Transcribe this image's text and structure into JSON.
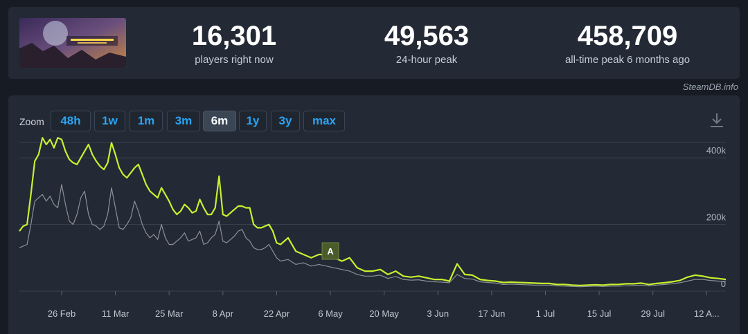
{
  "stats": [
    {
      "value": "16,301",
      "label": "players right now"
    },
    {
      "value": "49,563",
      "label": "24-hour peak"
    },
    {
      "value": "458,709",
      "label": "all-time peak 6 months ago"
    }
  ],
  "attribution": "SteamDB.info",
  "zoom": {
    "label": "Zoom",
    "options": [
      "48h",
      "1w",
      "1m",
      "3m",
      "6m",
      "1y",
      "3y",
      "max"
    ],
    "active": "6m"
  },
  "colors": {
    "players_line": "#c6f12f",
    "twitch_line": "#8c9197",
    "button_text": "#2aa4f4",
    "annotation_bg": "#4a5c2c"
  },
  "icons": {
    "download": "download-icon",
    "thumbnail": "game-thumbnail-image"
  },
  "chart_data": {
    "type": "line",
    "y_ticks": [
      {
        "value": 0,
        "label": "0"
      },
      {
        "value": 200000,
        "label": "200k"
      },
      {
        "value": 400000,
        "label": "400k"
      }
    ],
    "ylim": [
      0,
      500000
    ],
    "x_ticks": [
      "26 Feb",
      "11 Mar",
      "25 Mar",
      "8 Apr",
      "22 Apr",
      "6 May",
      "20 May",
      "3 Jun",
      "17 Jun",
      "1 Jul",
      "15 Jul",
      "29 Jul",
      "12 A..."
    ],
    "x_tick_days": [
      11,
      25,
      39,
      53,
      67,
      81,
      95,
      109,
      123,
      137,
      151,
      165,
      179
    ],
    "x_range_days": [
      0,
      184
    ],
    "annotation": {
      "label": "A",
      "day": 81
    },
    "series": [
      {
        "days": [
          0,
          1,
          2,
          3,
          4,
          5,
          6,
          7,
          8,
          9,
          10,
          11,
          12,
          13,
          14,
          15,
          16,
          17,
          18,
          19,
          20,
          21,
          22,
          23,
          24,
          25,
          26,
          27,
          28,
          29,
          30,
          31,
          32,
          33,
          34,
          35,
          36,
          37,
          38,
          39,
          40,
          41,
          42,
          43,
          44,
          45,
          46,
          47,
          48,
          49,
          50,
          51,
          52,
          53,
          54,
          55,
          56,
          57,
          58,
          59,
          60,
          61,
          62,
          63,
          64,
          65,
          66,
          67,
          68,
          70,
          72,
          74,
          76,
          78,
          80,
          82,
          84,
          86,
          88,
          90,
          92,
          94,
          96,
          98,
          100,
          102,
          104,
          106,
          108,
          110,
          112,
          114,
          116,
          118,
          120,
          122,
          124,
          126,
          128,
          130,
          132,
          134,
          136,
          138,
          140,
          142,
          144,
          146,
          148,
          150,
          152,
          154,
          156,
          158,
          160,
          162,
          164,
          166,
          168,
          170,
          172,
          174,
          176,
          178,
          180,
          182,
          184
        ],
        "values": [
          180000,
          195000,
          200000,
          290000,
          390000,
          410000,
          460000,
          440000,
          455000,
          430000,
          460000,
          455000,
          420000,
          395000,
          385000,
          380000,
          400000,
          420000,
          440000,
          410000,
          390000,
          375000,
          365000,
          385000,
          445000,
          410000,
          370000,
          350000,
          340000,
          355000,
          370000,
          380000,
          350000,
          320000,
          300000,
          290000,
          280000,
          310000,
          290000,
          270000,
          245000,
          230000,
          240000,
          260000,
          250000,
          235000,
          240000,
          275000,
          250000,
          230000,
          230000,
          250000,
          345000,
          230000,
          225000,
          235000,
          245000,
          255000,
          255000,
          250000,
          250000,
          200000,
          190000,
          190000,
          195000,
          200000,
          180000,
          145000,
          140000,
          160000,
          120000,
          110000,
          100000,
          110000,
          110000,
          100000,
          90000,
          100000,
          70000,
          60000,
          60000,
          65000,
          50000,
          60000,
          45000,
          42000,
          45000,
          40000,
          35000,
          35000,
          30000,
          82000,
          50000,
          48000,
          35000,
          32000,
          30000,
          26000,
          27000,
          26000,
          25000,
          24000,
          23000,
          23000,
          20000,
          20000,
          18000,
          17000,
          18000,
          19000,
          18000,
          20000,
          20000,
          22000,
          22000,
          24000,
          20000,
          23000,
          25000,
          28000,
          32000,
          42000,
          48000,
          45000,
          40000,
          38000,
          35000
        ]
      },
      {
        "days": [
          0,
          1,
          2,
          3,
          4,
          5,
          6,
          7,
          8,
          9,
          10,
          11,
          12,
          13,
          14,
          15,
          16,
          17,
          18,
          19,
          20,
          21,
          22,
          23,
          24,
          25,
          26,
          27,
          28,
          29,
          30,
          31,
          32,
          33,
          34,
          35,
          36,
          37,
          38,
          39,
          40,
          41,
          42,
          43,
          44,
          45,
          46,
          47,
          48,
          49,
          50,
          51,
          52,
          53,
          54,
          55,
          56,
          57,
          58,
          59,
          60,
          61,
          62,
          63,
          64,
          65,
          66,
          67,
          68,
          70,
          72,
          74,
          76,
          78,
          80,
          82,
          84,
          86,
          88,
          90,
          92,
          94,
          96,
          98,
          100,
          102,
          104,
          106,
          108,
          110,
          112,
          114,
          116,
          118,
          120,
          122,
          124,
          126,
          128,
          130,
          132,
          134,
          136,
          138,
          140,
          142,
          144,
          146,
          148,
          150,
          152,
          154,
          156,
          158,
          160,
          162,
          164,
          166,
          168,
          170,
          172,
          174,
          176,
          178,
          180,
          182,
          184
        ],
        "values": [
          130000,
          135000,
          140000,
          200000,
          270000,
          280000,
          290000,
          270000,
          285000,
          260000,
          250000,
          320000,
          260000,
          210000,
          200000,
          230000,
          280000,
          300000,
          230000,
          200000,
          195000,
          185000,
          195000,
          230000,
          310000,
          250000,
          190000,
          185000,
          200000,
          220000,
          270000,
          240000,
          200000,
          175000,
          160000,
          170000,
          155000,
          200000,
          160000,
          140000,
          140000,
          150000,
          160000,
          175000,
          150000,
          155000,
          160000,
          180000,
          140000,
          145000,
          160000,
          170000,
          210000,
          150000,
          145000,
          155000,
          165000,
          180000,
          185000,
          160000,
          150000,
          130000,
          125000,
          125000,
          130000,
          140000,
          120000,
          100000,
          90000,
          95000,
          80000,
          85000,
          75000,
          80000,
          75000,
          70000,
          65000,
          60000,
          50000,
          45000,
          45000,
          48000,
          38000,
          44000,
          35000,
          33000,
          34000,
          30000,
          28000,
          27000,
          25000,
          50000,
          38000,
          36000,
          28000,
          26000,
          24000,
          20000,
          21000,
          20000,
          19000,
          18000,
          18000,
          18000,
          16000,
          15000,
          14000,
          13000,
          14000,
          15000,
          14000,
          15000,
          15000,
          16000,
          17000,
          18000,
          16000,
          18000,
          20000,
          22000,
          25000,
          30000,
          35000,
          35000,
          32000,
          30000,
          28000
        ]
      }
    ]
  }
}
